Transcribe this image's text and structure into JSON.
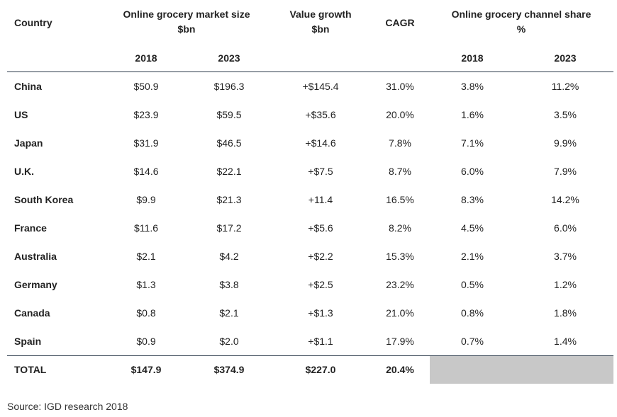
{
  "headers": {
    "country": "Country",
    "market_size": [
      "Online grocery market size",
      "$bn"
    ],
    "value_growth": [
      "Value growth",
      "$bn"
    ],
    "cagr": "CAGR",
    "channel_share": [
      "Online grocery channel share",
      "%"
    ],
    "years": [
      "2018",
      "2023",
      "2018",
      "2023"
    ]
  },
  "rows": [
    [
      "China",
      "$50.9",
      "$196.3",
      "+$145.4",
      "31.0%",
      "3.8%",
      "11.2%"
    ],
    [
      "US",
      "$23.9",
      "$59.5",
      "+$35.6",
      "20.0%",
      "1.6%",
      "3.5%"
    ],
    [
      "Japan",
      "$31.9",
      "$46.5",
      "+$14.6",
      "7.8%",
      "7.1%",
      "9.9%"
    ],
    [
      "U.K.",
      "$14.6",
      "$22.1",
      "+$7.5",
      "8.7%",
      "6.0%",
      "7.9%"
    ],
    [
      "South Korea",
      "$9.9",
      "$21.3",
      "+11.4",
      "16.5%",
      "8.3%",
      "14.2%"
    ],
    [
      "France",
      "$11.6",
      "$17.2",
      "+$5.6",
      "8.2%",
      "4.5%",
      "6.0%"
    ],
    [
      "Australia",
      "$2.1",
      "$4.2",
      "+$2.2",
      "15.3%",
      "2.1%",
      "3.7%"
    ],
    [
      "Germany",
      "$1.3",
      "$3.8",
      "+$2.5",
      "23.2%",
      "0.5%",
      "1.2%"
    ],
    [
      "Canada",
      "$0.8",
      "$2.1",
      "+$1.3",
      "21.0%",
      "0.8%",
      "1.8%"
    ],
    [
      "Spain",
      "$0.9",
      "$2.0",
      "+$1.1",
      "17.9%",
      "0.7%",
      "1.4%"
    ]
  ],
  "total": [
    "TOTAL",
    "$147.9",
    "$374.9",
    "$227.0",
    "20.4%"
  ],
  "source": "Source: IGD research 2018"
}
